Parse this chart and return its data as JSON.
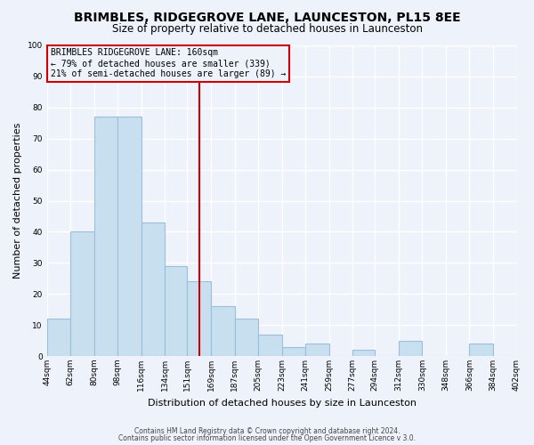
{
  "title": "BRIMBLES, RIDGEGROVE LANE, LAUNCESTON, PL15 8EE",
  "subtitle": "Size of property relative to detached houses in Launceston",
  "xlabel": "Distribution of detached houses by size in Launceston",
  "ylabel": "Number of detached properties",
  "footnote1": "Contains HM Land Registry data © Crown copyright and database right 2024.",
  "footnote2": "Contains public sector information licensed under the Open Government Licence v 3.0.",
  "bar_edges": [
    44,
    62,
    80,
    98,
    116,
    134,
    151,
    169,
    187,
    205,
    223,
    241,
    259,
    277,
    294,
    312,
    330,
    348,
    366,
    384,
    402
  ],
  "bar_heights": [
    12,
    40,
    77,
    77,
    43,
    29,
    24,
    16,
    12,
    7,
    3,
    4,
    0,
    2,
    0,
    5,
    0,
    0,
    4,
    0
  ],
  "bar_color": "#c8dff0",
  "bar_edgecolor": "#9bbfda",
  "vline_x": 160,
  "vline_color": "#cc0000",
  "annotation_title": "BRIMBLES RIDGEGROVE LANE: 160sqm",
  "annotation_line1": "← 79% of detached houses are smaller (339)",
  "annotation_line2": "21% of semi-detached houses are larger (89) →",
  "annotation_box_edgecolor": "#cc0000",
  "ylim": [
    0,
    100
  ],
  "xlim_left": 44,
  "xlim_right": 402,
  "background_color": "#eef2fb",
  "grid_color": "#ffffff",
  "tick_labels": [
    "44sqm",
    "62sqm",
    "80sqm",
    "98sqm",
    "116sqm",
    "134sqm",
    "151sqm",
    "169sqm",
    "187sqm",
    "205sqm",
    "223sqm",
    "241sqm",
    "259sqm",
    "277sqm",
    "294sqm",
    "312sqm",
    "330sqm",
    "348sqm",
    "366sqm",
    "384sqm",
    "402sqm"
  ],
  "title_fontsize": 10,
  "subtitle_fontsize": 8.5,
  "ylabel_fontsize": 8,
  "xlabel_fontsize": 8,
  "tick_fontsize": 6.5,
  "annotation_fontsize": 7,
  "footnote_fontsize": 5.5
}
